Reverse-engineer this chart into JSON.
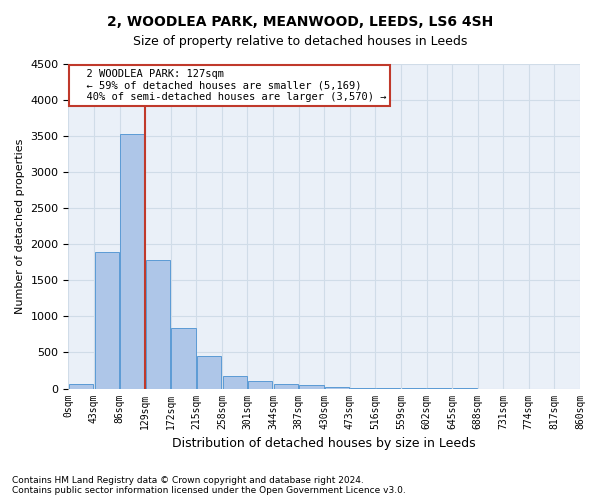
{
  "title": "2, WOODLEA PARK, MEANWOOD, LEEDS, LS6 4SH",
  "subtitle": "Size of property relative to detached houses in Leeds",
  "xlabel": "Distribution of detached houses by size in Leeds",
  "ylabel": "Number of detached properties",
  "footnote1": "Contains HM Land Registry data © Crown copyright and database right 2024.",
  "footnote2": "Contains public sector information licensed under the Open Government Licence v3.0.",
  "annotation_line1": "2 WOODLEA PARK: 127sqm",
  "annotation_line2": "← 59% of detached houses are smaller (5,169)",
  "annotation_line3": "40% of semi-detached houses are larger (3,570) →",
  "bin_labels": [
    "0sqm",
    "43sqm",
    "86sqm",
    "129sqm",
    "172sqm",
    "215sqm",
    "258sqm",
    "301sqm",
    "344sqm",
    "387sqm",
    "430sqm",
    "473sqm",
    "516sqm",
    "559sqm",
    "602sqm",
    "645sqm",
    "688sqm",
    "731sqm",
    "774sqm",
    "817sqm",
    "860sqm"
  ],
  "bar_values": [
    60,
    1900,
    3530,
    1780,
    840,
    450,
    170,
    105,
    70,
    45,
    20,
    8,
    3,
    2,
    1,
    1,
    0,
    0,
    0,
    0
  ],
  "bar_color": "#aec6e8",
  "bar_edge_color": "#5b9bd5",
  "grid_color": "#d0dce8",
  "bg_color": "#eaf0f8",
  "vline_color": "#c0392b",
  "annotation_box_color": "#c0392b",
  "ylim": [
    0,
    4500
  ],
  "yticks": [
    0,
    500,
    1000,
    1500,
    2000,
    2500,
    3000,
    3500,
    4000,
    4500
  ]
}
